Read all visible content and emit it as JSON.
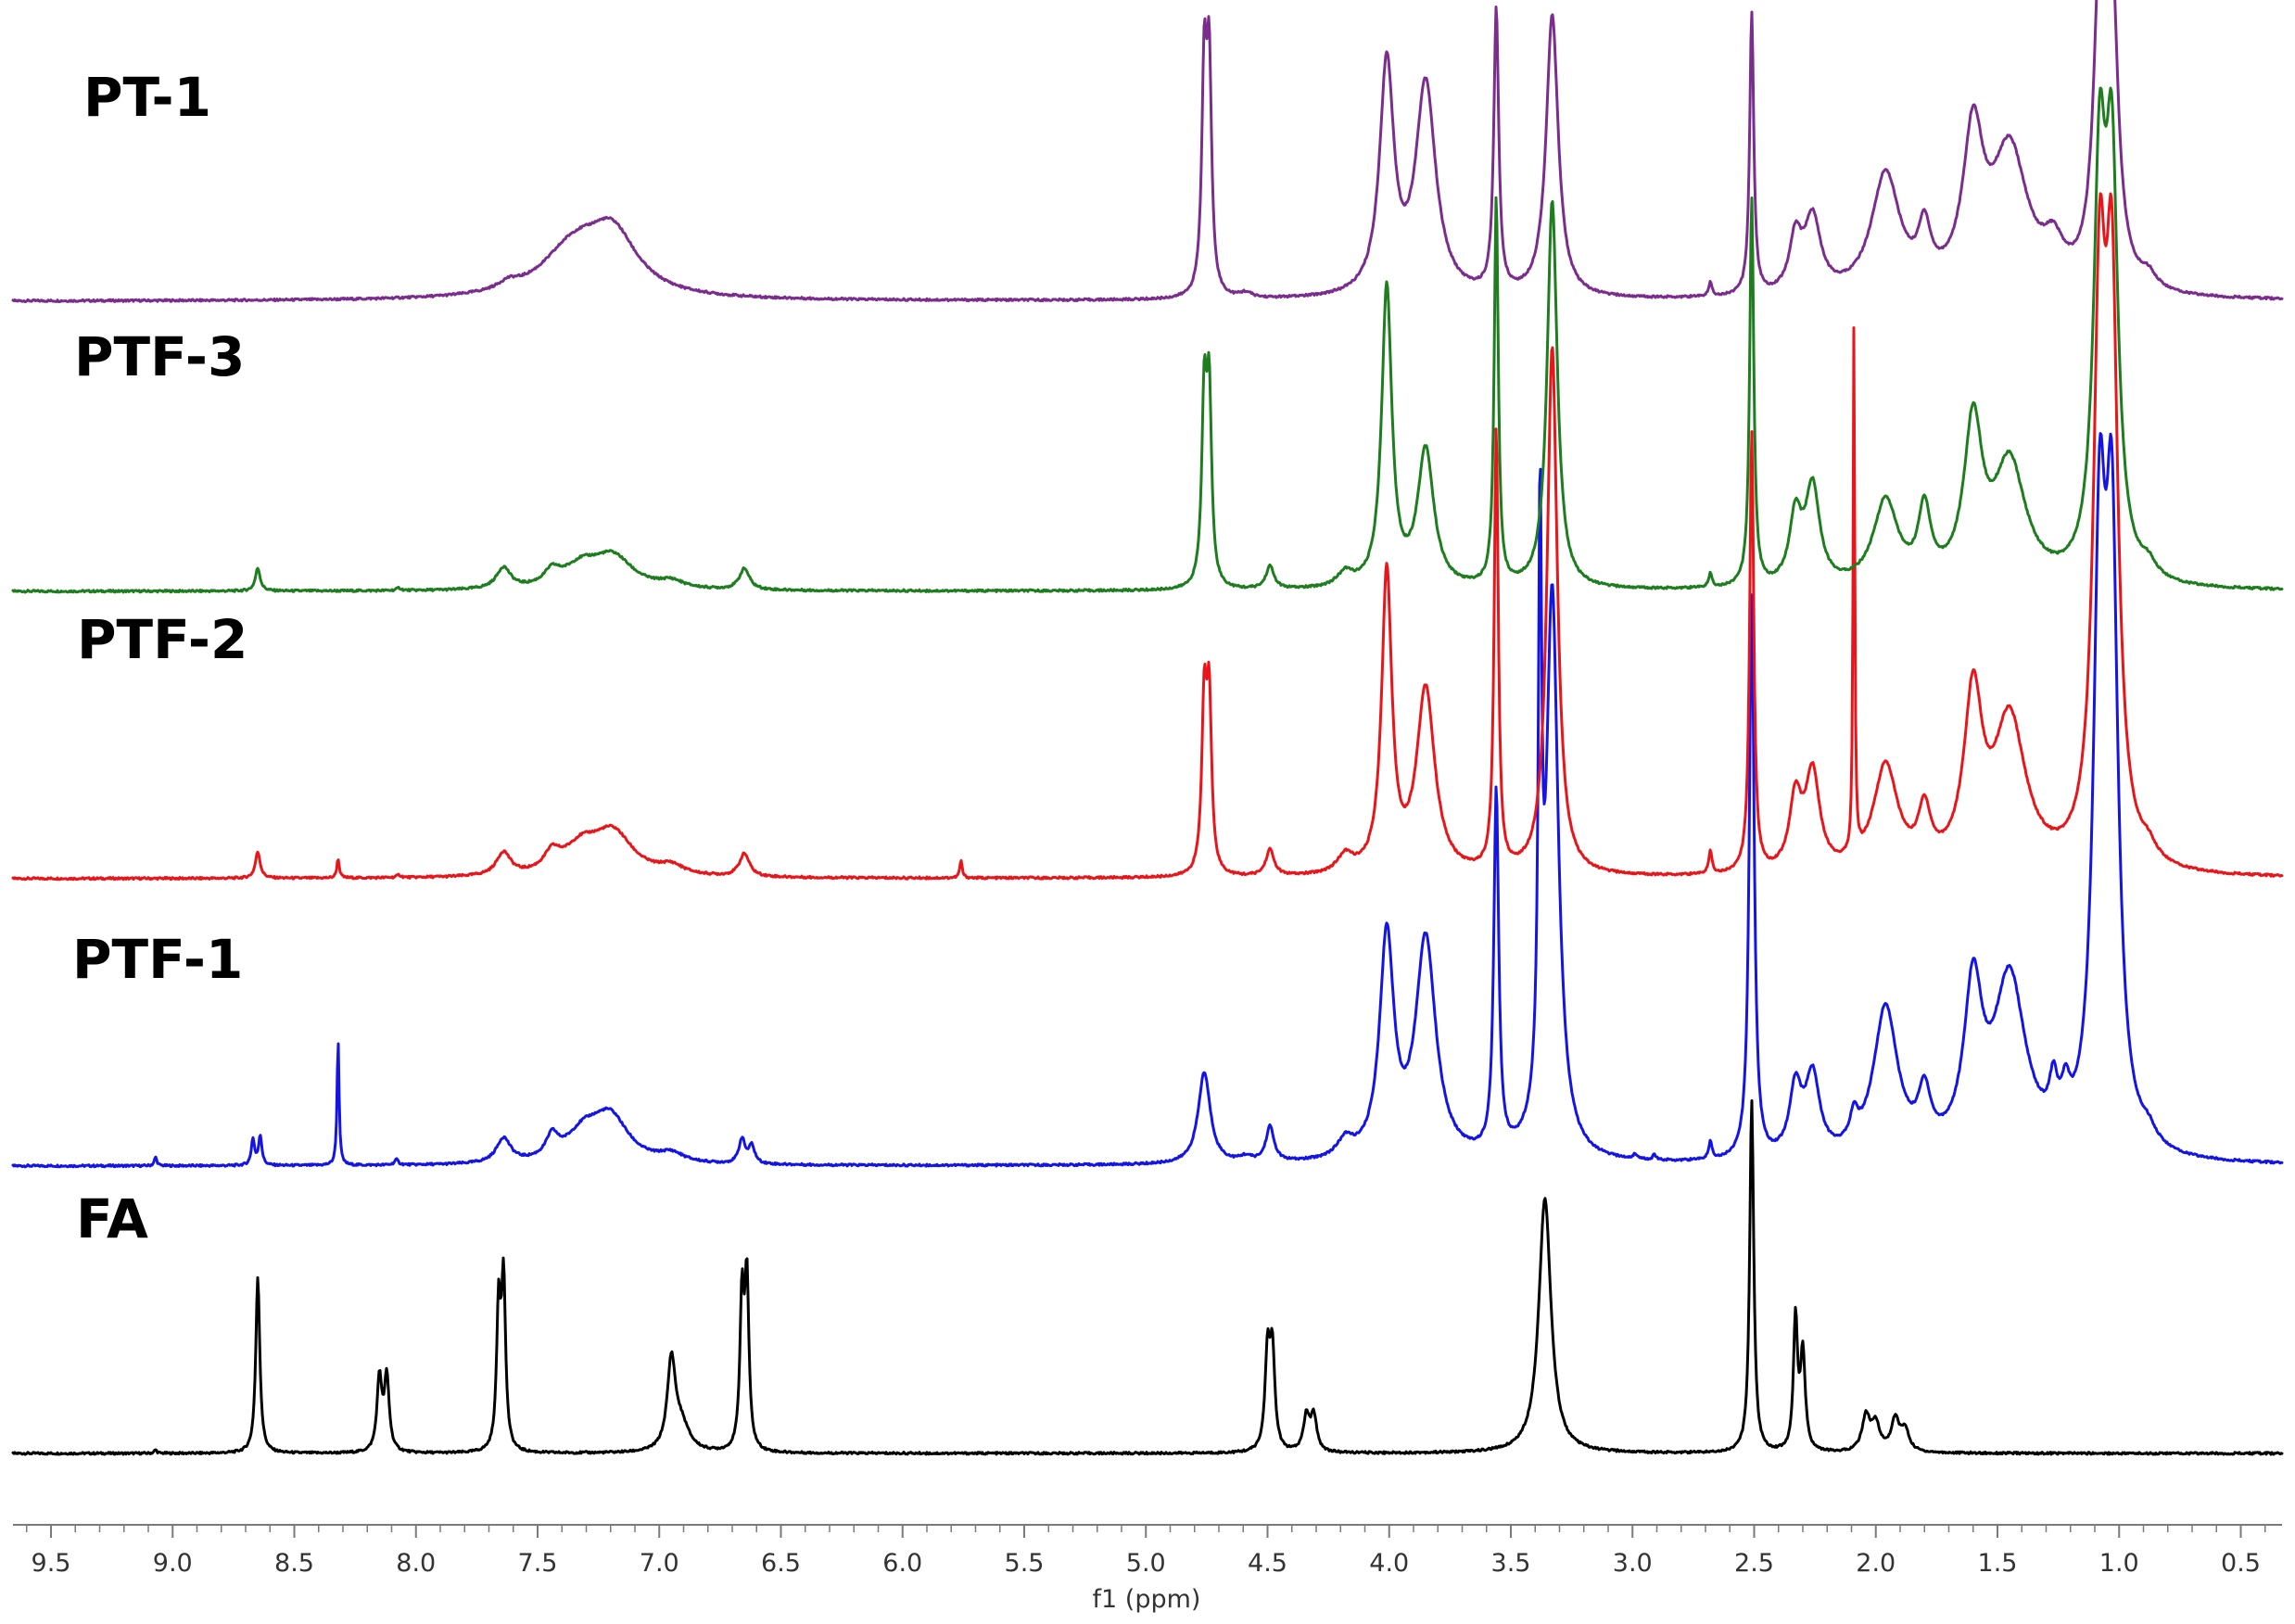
{
  "chart_data": {
    "type": "line",
    "title": "",
    "xlabel": "f1 (ppm)",
    "ylabel": "",
    "xlim": [
      9.7,
      0.2
    ],
    "x_reversed": true,
    "grid": false,
    "legend": "none",
    "x_ticks": [
      "9.5",
      "9.0",
      "8.5",
      "8.0",
      "7.5",
      "7.0",
      "6.5",
      "6.0",
      "5.5",
      "5.0",
      "4.5",
      "4.0",
      "3.5",
      "3.0",
      "2.5",
      "2.0",
      "1.5",
      "1.0",
      "0.5"
    ],
    "series": [
      {
        "name": "PT-1",
        "color": "#7b2d8e",
        "peaks": [
          {
            "ppm": 7.62,
            "height": 0.04,
            "width": 0.05
          },
          {
            "ppm": 7.35,
            "height": 0.28,
            "width": 0.16
          },
          {
            "ppm": 7.19,
            "height": 0.32,
            "width": 0.12
          },
          {
            "ppm": 4.76,
            "height": 1.25,
            "width": 0.012
          },
          {
            "ppm": 4.74,
            "height": 1.25,
            "width": 0.012
          },
          {
            "ppm": 4.59,
            "height": 0.03,
            "width": 0.03
          },
          {
            "ppm": 4.01,
            "height": 1.3,
            "width": 0.035
          },
          {
            "ppm": 3.85,
            "height": 1.2,
            "width": 0.05
          },
          {
            "ppm": 3.56,
            "height": 1.6,
            "width": 0.012
          },
          {
            "ppm": 3.33,
            "height": 1.6,
            "width": 0.03
          },
          {
            "ppm": 2.68,
            "height": 0.08,
            "width": 0.008
          },
          {
            "ppm": 2.51,
            "height": 1.6,
            "width": 0.01
          },
          {
            "ppm": 2.33,
            "height": 0.3,
            "width": 0.03
          },
          {
            "ppm": 2.26,
            "height": 0.42,
            "width": 0.04
          },
          {
            "ppm": 1.96,
            "height": 0.68,
            "width": 0.07
          },
          {
            "ppm": 1.8,
            "height": 0.3,
            "width": 0.03
          },
          {
            "ppm": 1.6,
            "height": 0.85,
            "width": 0.05
          },
          {
            "ppm": 1.45,
            "height": 0.8,
            "width": 0.09
          },
          {
            "ppm": 1.27,
            "height": 0.2,
            "width": 0.05
          },
          {
            "ppm": 1.08,
            "height": 1.6,
            "width": 0.03
          },
          {
            "ppm": 1.03,
            "height": 1.6,
            "width": 0.03
          },
          {
            "ppm": 0.88,
            "height": 0.08,
            "width": 0.04
          }
        ]
      },
      {
        "name": "PTF-3",
        "color": "#1e7d1e",
        "peaks": [
          {
            "ppm": 8.65,
            "height": 0.13,
            "width": 0.012
          },
          {
            "ppm": 8.07,
            "height": 0.015,
            "width": 0.01
          },
          {
            "ppm": 7.64,
            "height": 0.12,
            "width": 0.035
          },
          {
            "ppm": 7.44,
            "height": 0.08,
            "width": 0.04
          },
          {
            "ppm": 7.32,
            "height": 0.12,
            "width": 0.09
          },
          {
            "ppm": 7.19,
            "height": 0.18,
            "width": 0.1
          },
          {
            "ppm": 6.95,
            "height": 0.04,
            "width": 0.06
          },
          {
            "ppm": 6.65,
            "height": 0.12,
            "width": 0.025
          },
          {
            "ppm": 4.76,
            "height": 1.05,
            "width": 0.012
          },
          {
            "ppm": 4.74,
            "height": 1.05,
            "width": 0.012
          },
          {
            "ppm": 4.49,
            "height": 0.13,
            "width": 0.02
          },
          {
            "ppm": 4.18,
            "height": 0.08,
            "width": 0.04
          },
          {
            "ppm": 4.01,
            "height": 1.7,
            "width": 0.025
          },
          {
            "ppm": 3.85,
            "height": 0.78,
            "width": 0.04
          },
          {
            "ppm": 3.56,
            "height": 2.2,
            "width": 0.01
          },
          {
            "ppm": 3.33,
            "height": 2.2,
            "width": 0.025
          },
          {
            "ppm": 2.68,
            "height": 0.08,
            "width": 0.008
          },
          {
            "ppm": 2.51,
            "height": 2.2,
            "width": 0.01
          },
          {
            "ppm": 2.33,
            "height": 0.38,
            "width": 0.03
          },
          {
            "ppm": 2.26,
            "height": 0.55,
            "width": 0.035
          },
          {
            "ppm": 1.96,
            "height": 0.48,
            "width": 0.06
          },
          {
            "ppm": 1.8,
            "height": 0.4,
            "width": 0.03
          },
          {
            "ppm": 1.6,
            "height": 0.88,
            "width": 0.045
          },
          {
            "ppm": 1.45,
            "height": 0.68,
            "width": 0.08
          },
          {
            "ppm": 1.08,
            "height": 2.2,
            "width": 0.03
          },
          {
            "ppm": 1.03,
            "height": 2.2,
            "width": 0.03
          },
          {
            "ppm": 0.88,
            "height": 0.08,
            "width": 0.04
          }
        ]
      },
      {
        "name": "PTF-2",
        "color": "#e8161b",
        "peaks": [
          {
            "ppm": 8.65,
            "height": 0.15,
            "width": 0.012
          },
          {
            "ppm": 8.32,
            "height": 0.11,
            "width": 0.006
          },
          {
            "ppm": 8.07,
            "height": 0.015,
            "width": 0.01
          },
          {
            "ppm": 7.64,
            "height": 0.13,
            "width": 0.035
          },
          {
            "ppm": 7.44,
            "height": 0.1,
            "width": 0.04
          },
          {
            "ppm": 7.32,
            "height": 0.15,
            "width": 0.09
          },
          {
            "ppm": 7.19,
            "height": 0.24,
            "width": 0.1
          },
          {
            "ppm": 6.95,
            "height": 0.05,
            "width": 0.06
          },
          {
            "ppm": 6.65,
            "height": 0.13,
            "width": 0.025
          },
          {
            "ppm": 5.76,
            "height": 0.1,
            "width": 0.006
          },
          {
            "ppm": 4.76,
            "height": 0.95,
            "width": 0.012
          },
          {
            "ppm": 4.74,
            "height": 0.95,
            "width": 0.012
          },
          {
            "ppm": 4.49,
            "height": 0.15,
            "width": 0.02
          },
          {
            "ppm": 4.18,
            "height": 0.1,
            "width": 0.04
          },
          {
            "ppm": 4.01,
            "height": 1.7,
            "width": 0.025
          },
          {
            "ppm": 3.85,
            "height": 1.05,
            "width": 0.045
          },
          {
            "ppm": 3.56,
            "height": 2.5,
            "width": 0.01
          },
          {
            "ppm": 3.33,
            "height": 3.0,
            "width": 0.025
          },
          {
            "ppm": 2.68,
            "height": 0.13,
            "width": 0.008
          },
          {
            "ppm": 2.51,
            "height": 2.5,
            "width": 0.01
          },
          {
            "ppm": 2.33,
            "height": 0.4,
            "width": 0.03
          },
          {
            "ppm": 2.26,
            "height": 0.55,
            "width": 0.035
          },
          {
            "ppm": 2.09,
            "height": 3.0,
            "width": 0.004
          },
          {
            "ppm": 1.96,
            "height": 0.6,
            "width": 0.06
          },
          {
            "ppm": 1.8,
            "height": 0.3,
            "width": 0.03
          },
          {
            "ppm": 1.6,
            "height": 0.95,
            "width": 0.045
          },
          {
            "ppm": 1.45,
            "height": 0.85,
            "width": 0.08
          },
          {
            "ppm": 1.08,
            "height": 3.0,
            "width": 0.03
          },
          {
            "ppm": 1.03,
            "height": 3.0,
            "width": 0.03
          },
          {
            "ppm": 0.88,
            "height": 0.08,
            "width": 0.04
          }
        ]
      },
      {
        "name": "PTF-1",
        "color": "#1414e6",
        "peaks": [
          {
            "ppm": 9.07,
            "height": 0.05,
            "width": 0.006
          },
          {
            "ppm": 8.67,
            "height": 0.15,
            "width": 0.008
          },
          {
            "ppm": 8.64,
            "height": 0.17,
            "width": 0.008
          },
          {
            "ppm": 8.32,
            "height": 0.72,
            "width": 0.005
          },
          {
            "ppm": 8.08,
            "height": 0.03,
            "width": 0.01
          },
          {
            "ppm": 7.64,
            "height": 0.14,
            "width": 0.035
          },
          {
            "ppm": 7.44,
            "height": 0.12,
            "width": 0.03
          },
          {
            "ppm": 7.31,
            "height": 0.16,
            "width": 0.09
          },
          {
            "ppm": 7.2,
            "height": 0.25,
            "width": 0.09
          },
          {
            "ppm": 6.95,
            "height": 0.05,
            "width": 0.06
          },
          {
            "ppm": 6.66,
            "height": 0.14,
            "width": 0.015
          },
          {
            "ppm": 6.62,
            "height": 0.1,
            "width": 0.015
          },
          {
            "ppm": 4.76,
            "height": 0.52,
            "width": 0.03
          },
          {
            "ppm": 4.59,
            "height": 0.03,
            "width": 0.03
          },
          {
            "ppm": 4.49,
            "height": 0.2,
            "width": 0.02
          },
          {
            "ppm": 4.18,
            "height": 0.1,
            "width": 0.04
          },
          {
            "ppm": 4.01,
            "height": 1.25,
            "width": 0.035
          },
          {
            "ppm": 3.85,
            "height": 1.25,
            "width": 0.05
          },
          {
            "ppm": 3.56,
            "height": 2.05,
            "width": 0.012
          },
          {
            "ppm": 3.38,
            "height": 3.2,
            "width": 0.008
          },
          {
            "ppm": 3.33,
            "height": 3.2,
            "width": 0.03
          },
          {
            "ppm": 2.99,
            "height": 0.03,
            "width": 0.008
          },
          {
            "ppm": 2.91,
            "height": 0.03,
            "width": 0.008
          },
          {
            "ppm": 2.68,
            "height": 0.1,
            "width": 0.008
          },
          {
            "ppm": 2.51,
            "height": 3.2,
            "width": 0.012
          },
          {
            "ppm": 2.33,
            "height": 0.38,
            "width": 0.03
          },
          {
            "ppm": 2.26,
            "height": 0.45,
            "width": 0.035
          },
          {
            "ppm": 2.09,
            "height": 0.15,
            "width": 0.02
          },
          {
            "ppm": 1.96,
            "height": 0.85,
            "width": 0.06
          },
          {
            "ppm": 1.8,
            "height": 0.3,
            "width": 0.03
          },
          {
            "ppm": 1.6,
            "height": 0.9,
            "width": 0.045
          },
          {
            "ppm": 1.45,
            "height": 1.0,
            "width": 0.08
          },
          {
            "ppm": 1.27,
            "height": 0.25,
            "width": 0.02
          },
          {
            "ppm": 1.22,
            "height": 0.2,
            "width": 0.02
          },
          {
            "ppm": 1.08,
            "height": 3.2,
            "width": 0.03
          },
          {
            "ppm": 1.03,
            "height": 3.2,
            "width": 0.03
          },
          {
            "ppm": 0.88,
            "height": 0.08,
            "width": 0.04
          }
        ]
      },
      {
        "name": "FA",
        "color": "#000000",
        "peaks": [
          {
            "ppm": 9.07,
            "height": 0.02,
            "width": 0.006
          },
          {
            "ppm": 8.65,
            "height": 1.0,
            "width": 0.01
          },
          {
            "ppm": 8.15,
            "height": 0.42,
            "width": 0.012
          },
          {
            "ppm": 8.12,
            "height": 0.42,
            "width": 0.012
          },
          {
            "ppm": 7.66,
            "height": 0.8,
            "width": 0.01
          },
          {
            "ppm": 7.64,
            "height": 0.95,
            "width": 0.01
          },
          {
            "ppm": 6.95,
            "height": 0.5,
            "width": 0.02
          },
          {
            "ppm": 6.91,
            "height": 0.15,
            "width": 0.04
          },
          {
            "ppm": 6.66,
            "height": 0.85,
            "width": 0.01
          },
          {
            "ppm": 6.64,
            "height": 0.95,
            "width": 0.01
          },
          {
            "ppm": 4.5,
            "height": 0.55,
            "width": 0.012
          },
          {
            "ppm": 4.48,
            "height": 0.55,
            "width": 0.012
          },
          {
            "ppm": 4.34,
            "height": 0.2,
            "width": 0.015
          },
          {
            "ppm": 4.31,
            "height": 0.2,
            "width": 0.015
          },
          {
            "ppm": 3.36,
            "height": 1.45,
            "width": 0.03
          },
          {
            "ppm": 2.51,
            "height": 2.0,
            "width": 0.01
          },
          {
            "ppm": 2.33,
            "height": 0.75,
            "width": 0.01
          },
          {
            "ppm": 2.3,
            "height": 0.55,
            "width": 0.012
          },
          {
            "ppm": 2.04,
            "height": 0.2,
            "width": 0.02
          },
          {
            "ppm": 2.0,
            "height": 0.15,
            "width": 0.02
          },
          {
            "ppm": 1.92,
            "height": 0.18,
            "width": 0.02
          },
          {
            "ppm": 1.88,
            "height": 0.12,
            "width": 0.02
          }
        ]
      }
    ]
  }
}
